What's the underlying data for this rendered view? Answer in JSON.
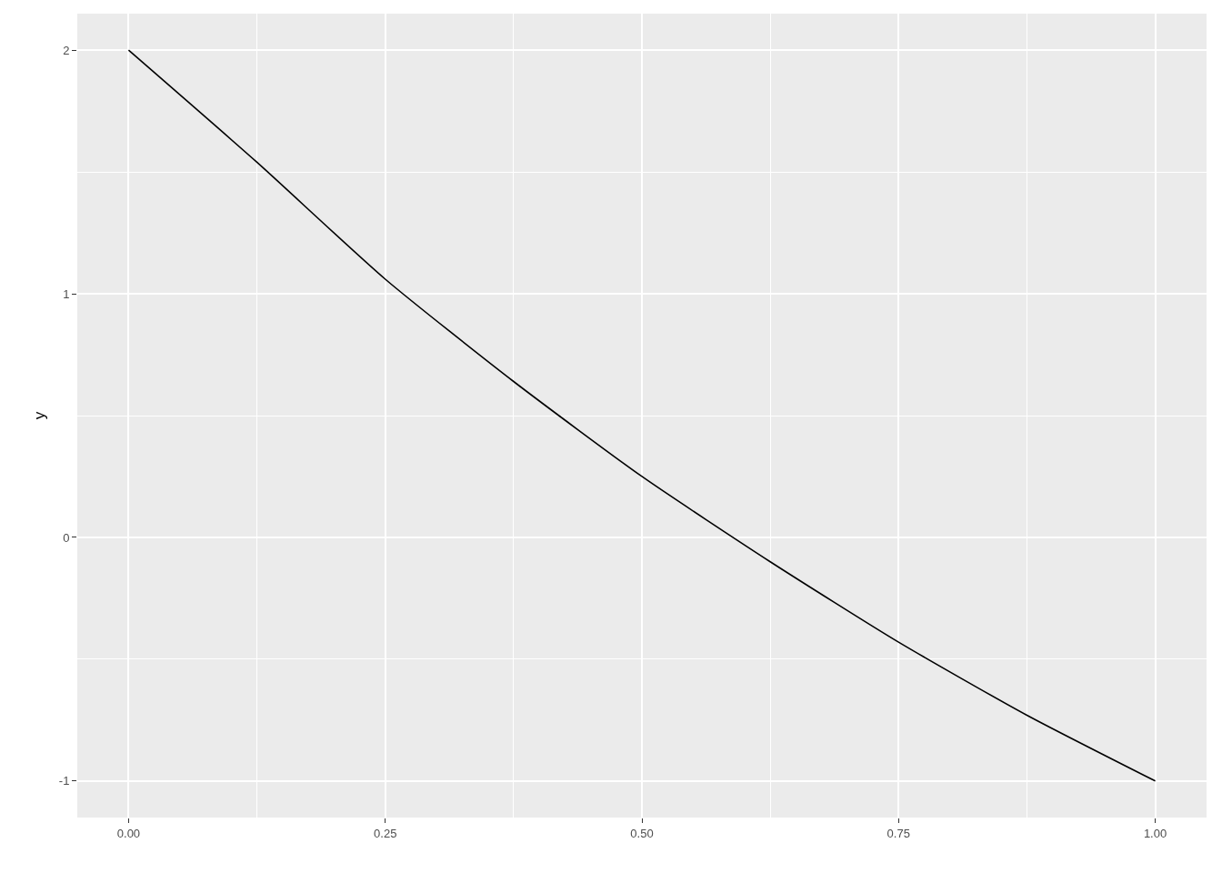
{
  "chart_data": {
    "type": "line",
    "ylabel": "y",
    "x": [
      0,
      0.125,
      0.25,
      0.375,
      0.5,
      0.625,
      0.75,
      0.875,
      1
    ],
    "series": [
      {
        "color": "#000000",
        "values": [
          2,
          1.54,
          1.06,
          0.64,
          0.25,
          -0.1,
          -0.43,
          -0.73,
          -1
        ]
      }
    ],
    "xlim": [
      -0.05,
      1.05
    ],
    "xticks": [
      {
        "value": 0,
        "label": "0.00"
      },
      0.25,
      {
        "value": 0.5,
        "label": "0.50"
      },
      0.75,
      {
        "value": 1,
        "label": "1.00"
      }
    ],
    "ylim": [
      -1.15,
      2.15
    ],
    "yticks": [
      -1,
      0,
      1,
      2
    ],
    "grid": true,
    "legend": false,
    "marker": "none",
    "line_style": "solid"
  }
}
